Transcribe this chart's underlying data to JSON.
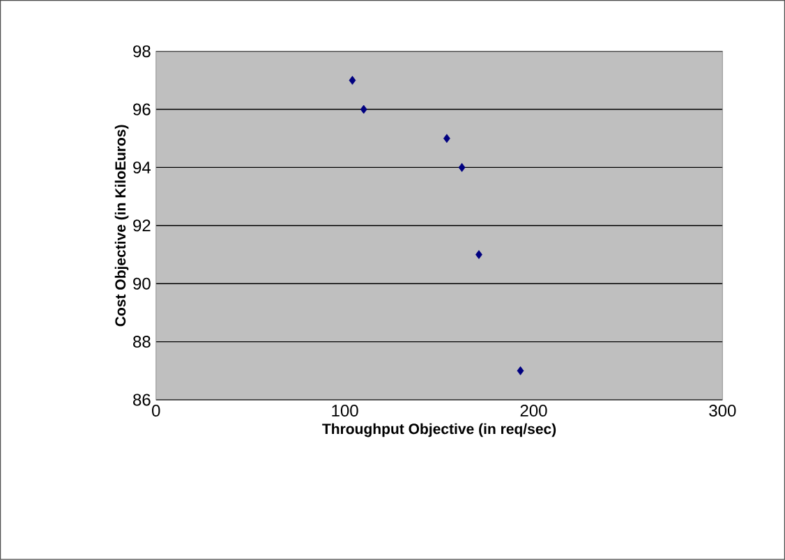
{
  "chart_data": {
    "type": "scatter",
    "xlabel": "Throughput  Objective (in req/sec)",
    "ylabel": "Cost Objective (in KiloEuros)",
    "x": [
      104,
      110,
      154,
      162,
      171,
      193
    ],
    "values": [
      97,
      96,
      95,
      94,
      91,
      87
    ],
    "color": "#000080",
    "marker": "diamond",
    "grid": "y",
    "xlim": [
      0,
      300
    ],
    "xticks": [
      0,
      100,
      200,
      300
    ],
    "ylim": [
      86,
      98
    ],
    "yticks": [
      86,
      88,
      90,
      92,
      94,
      96,
      98
    ]
  }
}
